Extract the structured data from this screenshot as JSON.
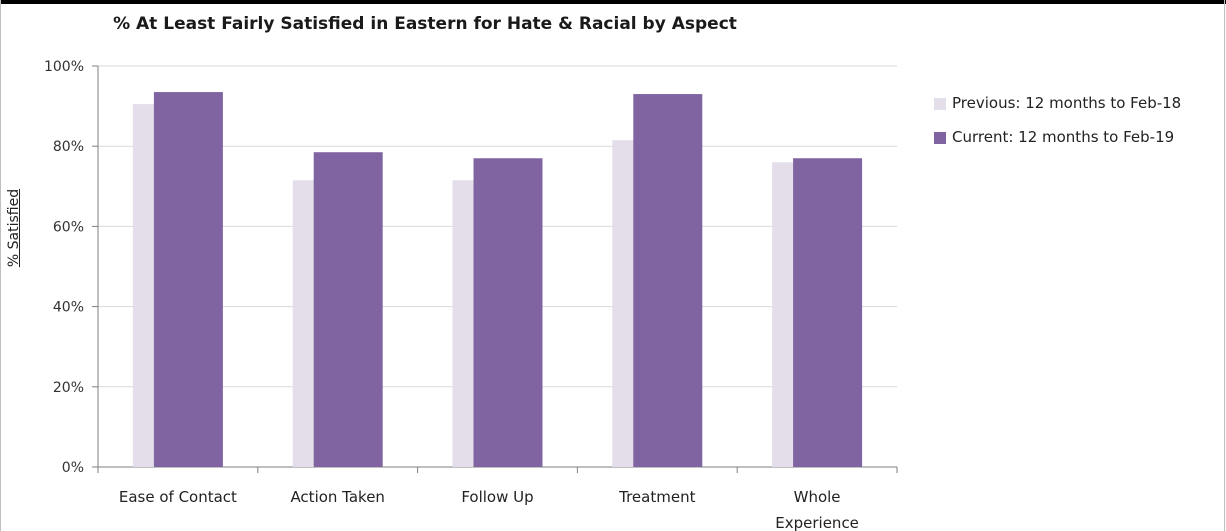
{
  "chart_data": {
    "type": "bar",
    "title": "% At Least Fairly Satisfied in Eastern for Hate & Racial by Aspect",
    "xlabel": "",
    "ylabel": "% Satisfied",
    "ylim": [
      0,
      100
    ],
    "yticks": [
      "0%",
      "20%",
      "40%",
      "60%",
      "80%",
      "100%"
    ],
    "ytick_values": [
      0,
      20,
      40,
      60,
      80,
      100
    ],
    "categories": [
      "Ease of Contact",
      "Action Taken",
      "Follow Up",
      "Treatment",
      "Whole Experience"
    ],
    "category_lines": [
      [
        "Ease of Contact"
      ],
      [
        "Action Taken"
      ],
      [
        "Follow Up"
      ],
      [
        "Treatment"
      ],
      [
        "Whole",
        "Experience"
      ]
    ],
    "series": [
      {
        "name": "Previous: 12 months to Feb-18",
        "color": "#e4deeb",
        "values": [
          90.5,
          71.5,
          71.5,
          81.5,
          76
        ]
      },
      {
        "name": "Current: 12 months to Feb-19",
        "color": "#8064a2",
        "values": [
          93.5,
          78.5,
          77,
          93,
          77
        ]
      }
    ],
    "grid": true,
    "legend_position": "right"
  }
}
